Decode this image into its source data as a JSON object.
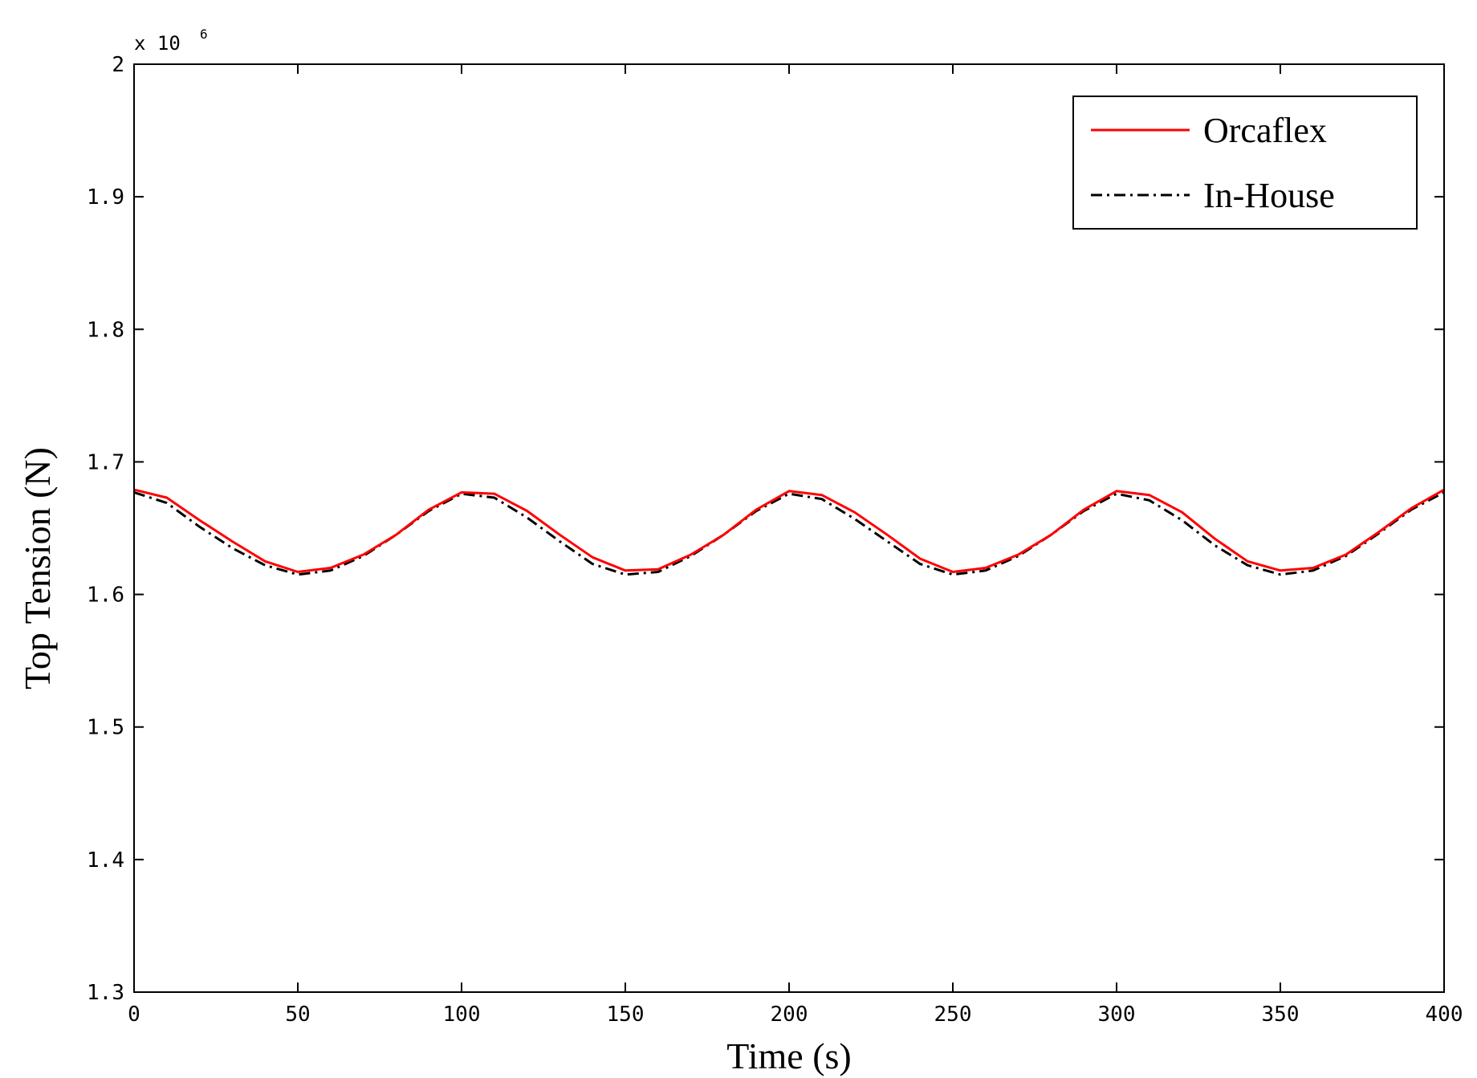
{
  "chart_data": {
    "type": "line",
    "title": "",
    "xlabel": "Time (s)",
    "ylabel": "Top Tension (N)",
    "y_scale_factor": {
      "base": "x 10",
      "exponent": "6"
    },
    "xlim": [
      0,
      400
    ],
    "ylim": [
      1.3,
      2.0
    ],
    "x_ticks": [
      "0",
      "50",
      "100",
      "150",
      "200",
      "250",
      "300",
      "350",
      "400"
    ],
    "y_ticks": [
      "1.3",
      "1.4",
      "1.5",
      "1.6",
      "1.7",
      "1.8",
      "1.9",
      "2"
    ],
    "grid": false,
    "legend_position": "top-right",
    "series": [
      {
        "name": "Orcaflex",
        "color": "#ff0000",
        "style": "solid",
        "x": [
          0,
          10,
          20,
          30,
          40,
          50,
          60,
          70,
          80,
          90,
          100,
          110,
          120,
          130,
          140,
          150,
          160,
          170,
          180,
          190,
          200,
          210,
          220,
          230,
          240,
          250,
          260,
          270,
          280,
          290,
          300,
          310,
          320,
          330,
          340,
          350,
          360,
          370,
          380,
          390,
          400
        ],
        "y": [
          1.679,
          1.673,
          1.656,
          1.64,
          1.625,
          1.617,
          1.62,
          1.63,
          1.645,
          1.664,
          1.677,
          1.676,
          1.663,
          1.645,
          1.628,
          1.618,
          1.619,
          1.63,
          1.645,
          1.664,
          1.678,
          1.675,
          1.662,
          1.645,
          1.627,
          1.617,
          1.62,
          1.63,
          1.645,
          1.664,
          1.678,
          1.675,
          1.662,
          1.642,
          1.625,
          1.618,
          1.62,
          1.63,
          1.647,
          1.665,
          1.679
        ]
      },
      {
        "name": "In-House",
        "color": "#000000",
        "style": "dash-dot",
        "x": [
          0,
          10,
          20,
          30,
          40,
          50,
          60,
          70,
          80,
          90,
          100,
          110,
          120,
          130,
          140,
          150,
          160,
          170,
          180,
          190,
          200,
          210,
          220,
          230,
          240,
          250,
          260,
          270,
          280,
          290,
          300,
          310,
          320,
          330,
          340,
          350,
          360,
          370,
          380,
          390,
          400
        ],
        "y": [
          1.677,
          1.669,
          1.651,
          1.635,
          1.622,
          1.615,
          1.618,
          1.629,
          1.645,
          1.663,
          1.676,
          1.673,
          1.658,
          1.64,
          1.623,
          1.615,
          1.617,
          1.629,
          1.645,
          1.663,
          1.676,
          1.672,
          1.657,
          1.64,
          1.623,
          1.615,
          1.618,
          1.629,
          1.645,
          1.663,
          1.676,
          1.671,
          1.656,
          1.637,
          1.622,
          1.615,
          1.618,
          1.629,
          1.646,
          1.664,
          1.677
        ]
      }
    ]
  }
}
